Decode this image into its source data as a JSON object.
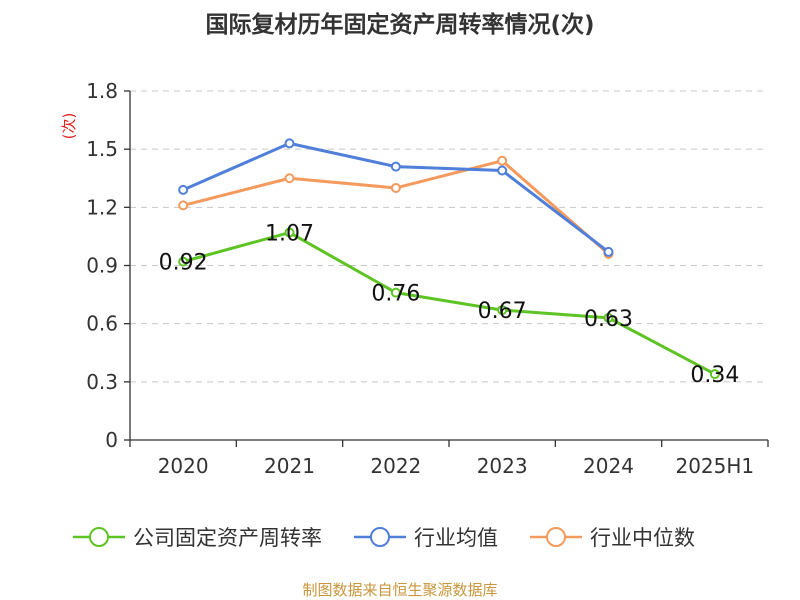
{
  "chart_data": {
    "type": "line",
    "title": "国际复材历年固定资产周转率情况(次)",
    "ylabel": "(次)",
    "xlabel": "",
    "categories": [
      "2020",
      "2021",
      "2022",
      "2023",
      "2024",
      "2025H1"
    ],
    "yticks": [
      "0",
      "0.3",
      "0.6",
      "0.9",
      "1.2",
      "1.5",
      "1.8"
    ],
    "ylim": [
      0,
      1.8
    ],
    "grid": true,
    "legend_position": "bottom",
    "series": [
      {
        "name": "公司固定资产周转率",
        "color": "#5ec424",
        "values": [
          0.92,
          1.07,
          0.76,
          0.67,
          0.63,
          0.34
        ],
        "labels": [
          "0.92",
          "1.07",
          "0.76",
          "0.67",
          "0.63",
          "0.34"
        ]
      },
      {
        "name": "行业均值",
        "color": "#4f7fd9",
        "values": [
          1.29,
          1.53,
          1.41,
          1.39,
          0.97,
          null
        ]
      },
      {
        "name": "行业中位数",
        "color": "#f39a5c",
        "values": [
          1.21,
          1.35,
          1.3,
          1.44,
          0.96,
          null
        ]
      }
    ]
  },
  "footer": {
    "source": "制图数据来自恒生聚源数据库"
  }
}
